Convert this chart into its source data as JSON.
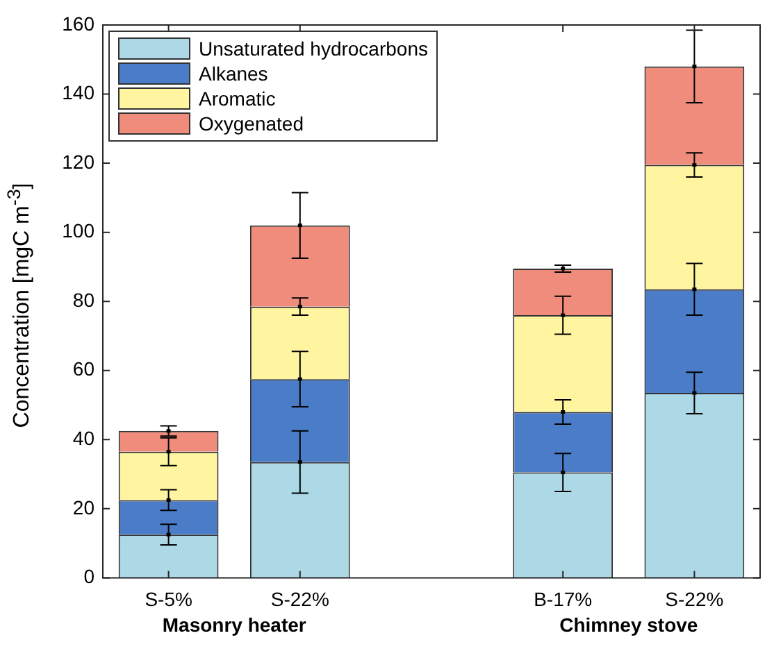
{
  "chart_data": {
    "type": "bar",
    "stacked": true,
    "ylabel": "Concentration [mgC m$^{-3}$]",
    "categories": [
      "S-5%",
      "S-22%",
      null,
      "B-17%",
      "S-22%"
    ],
    "series": [
      {
        "name": "Unsaturated hydrocarbons",
        "color": "#add8e6",
        "values": [
          12.5,
          33.5,
          null,
          30.5,
          53.5
        ],
        "errors": [
          3,
          9,
          null,
          5.5,
          6
        ]
      },
      {
        "name": "Alkanes",
        "color": "#4a7cc7",
        "values": [
          10,
          24,
          null,
          17.5,
          30
        ],
        "errors": [
          3,
          8,
          null,
          3.5,
          7.5
        ]
      },
      {
        "name": "Aromatic",
        "color": "#fff5a0",
        "values": [
          14,
          21,
          null,
          28,
          36
        ],
        "errors": [
          4,
          2.5,
          null,
          5.5,
          3.5
        ]
      },
      {
        "name": "Oxygenated",
        "color": "#f08c7c",
        "values": [
          6,
          23.5,
          null,
          13.5,
          28.5
        ],
        "errors": [
          1.5,
          9.5,
          null,
          1,
          10.5
        ]
      }
    ],
    "ylim": [
      0,
      160
    ],
    "yticks": [
      0,
      20,
      40,
      60,
      80,
      100,
      120,
      140,
      160
    ],
    "grid": false,
    "legend": "top left",
    "annotations": [
      "Masonry heater",
      "Chimney stove"
    ]
  }
}
